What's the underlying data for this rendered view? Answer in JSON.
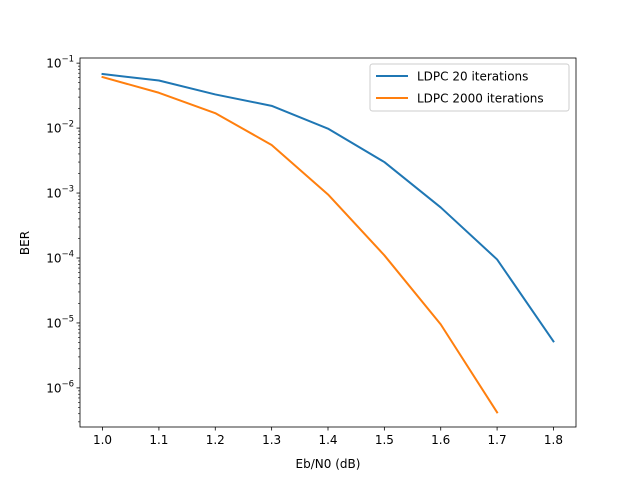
{
  "chart_data": {
    "type": "line",
    "title": "",
    "xlabel": "Eb/N0 (dB)",
    "ylabel": "BER",
    "yscale": "log",
    "xlim": [
      0.96,
      1.84
    ],
    "ylim": [
      2.5e-07,
      0.12
    ],
    "x_ticks": [
      "1.0",
      "1.1",
      "1.2",
      "1.3",
      "1.4",
      "1.5",
      "1.6",
      "1.7",
      "1.8"
    ],
    "y_ticks": [
      {
        "base": "10",
        "exp": "−6"
      },
      {
        "base": "10",
        "exp": "−5"
      },
      {
        "base": "10",
        "exp": "−4"
      },
      {
        "base": "10",
        "exp": "−3"
      },
      {
        "base": "10",
        "exp": "−2"
      },
      {
        "base": "10",
        "exp": "−1"
      }
    ],
    "grid": false,
    "legend_position": "top-right",
    "series": [
      {
        "name": "LDPC 20 iterations",
        "color": "#1f77b4",
        "x": [
          1.0,
          1.1,
          1.2,
          1.3,
          1.4,
          1.5,
          1.6,
          1.7,
          1.8
        ],
        "y": [
          0.068,
          0.054,
          0.033,
          0.022,
          0.0098,
          0.003,
          0.0006,
          9.5e-05,
          5.2e-06
        ]
      },
      {
        "name": "LDPC 2000 iterations",
        "color": "#ff7f0e",
        "x": [
          1.0,
          1.1,
          1.2,
          1.3,
          1.4,
          1.5,
          1.6,
          1.7
        ],
        "y": [
          0.061,
          0.035,
          0.017,
          0.0055,
          0.00095,
          0.00011,
          9.5e-06,
          4.2e-07
        ]
      }
    ]
  }
}
